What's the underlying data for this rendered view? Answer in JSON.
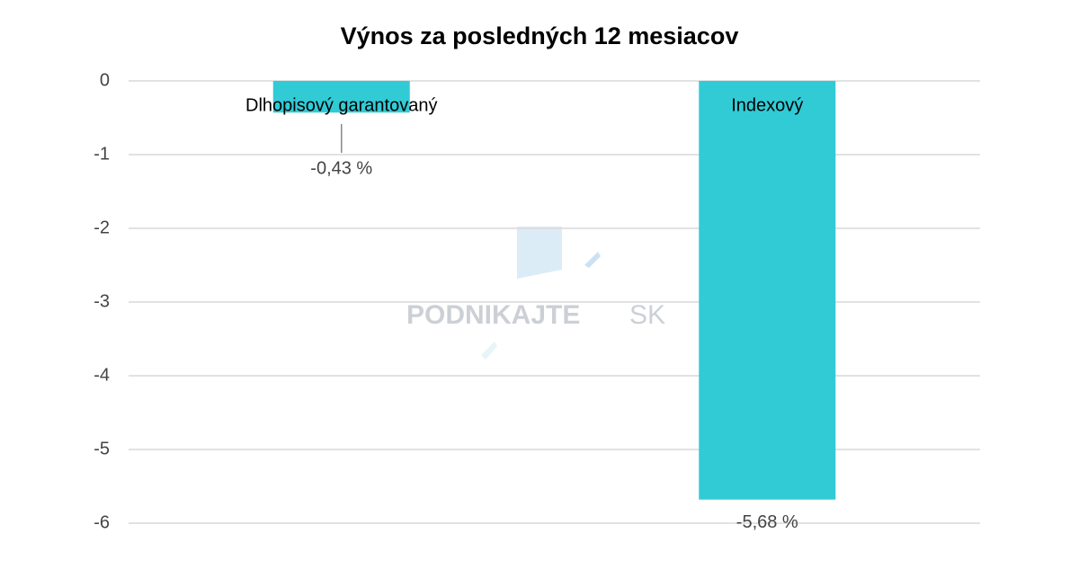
{
  "chart_data": {
    "type": "bar",
    "title": "Výnos za posledných 12 mesiacov",
    "categories": [
      "Dlhopisový garantovaný",
      "Indexový"
    ],
    "values": [
      -0.43,
      -5.68
    ],
    "value_labels": [
      "-0,43 %",
      "-5,68 %"
    ],
    "color": "#31cbd6",
    "ylim": [
      -6,
      0
    ],
    "yticks": [
      0,
      -1,
      -2,
      -3,
      -4,
      -5,
      -6
    ],
    "grid": true,
    "watermark": [
      "PODNIKAJTE",
      "SK"
    ]
  }
}
